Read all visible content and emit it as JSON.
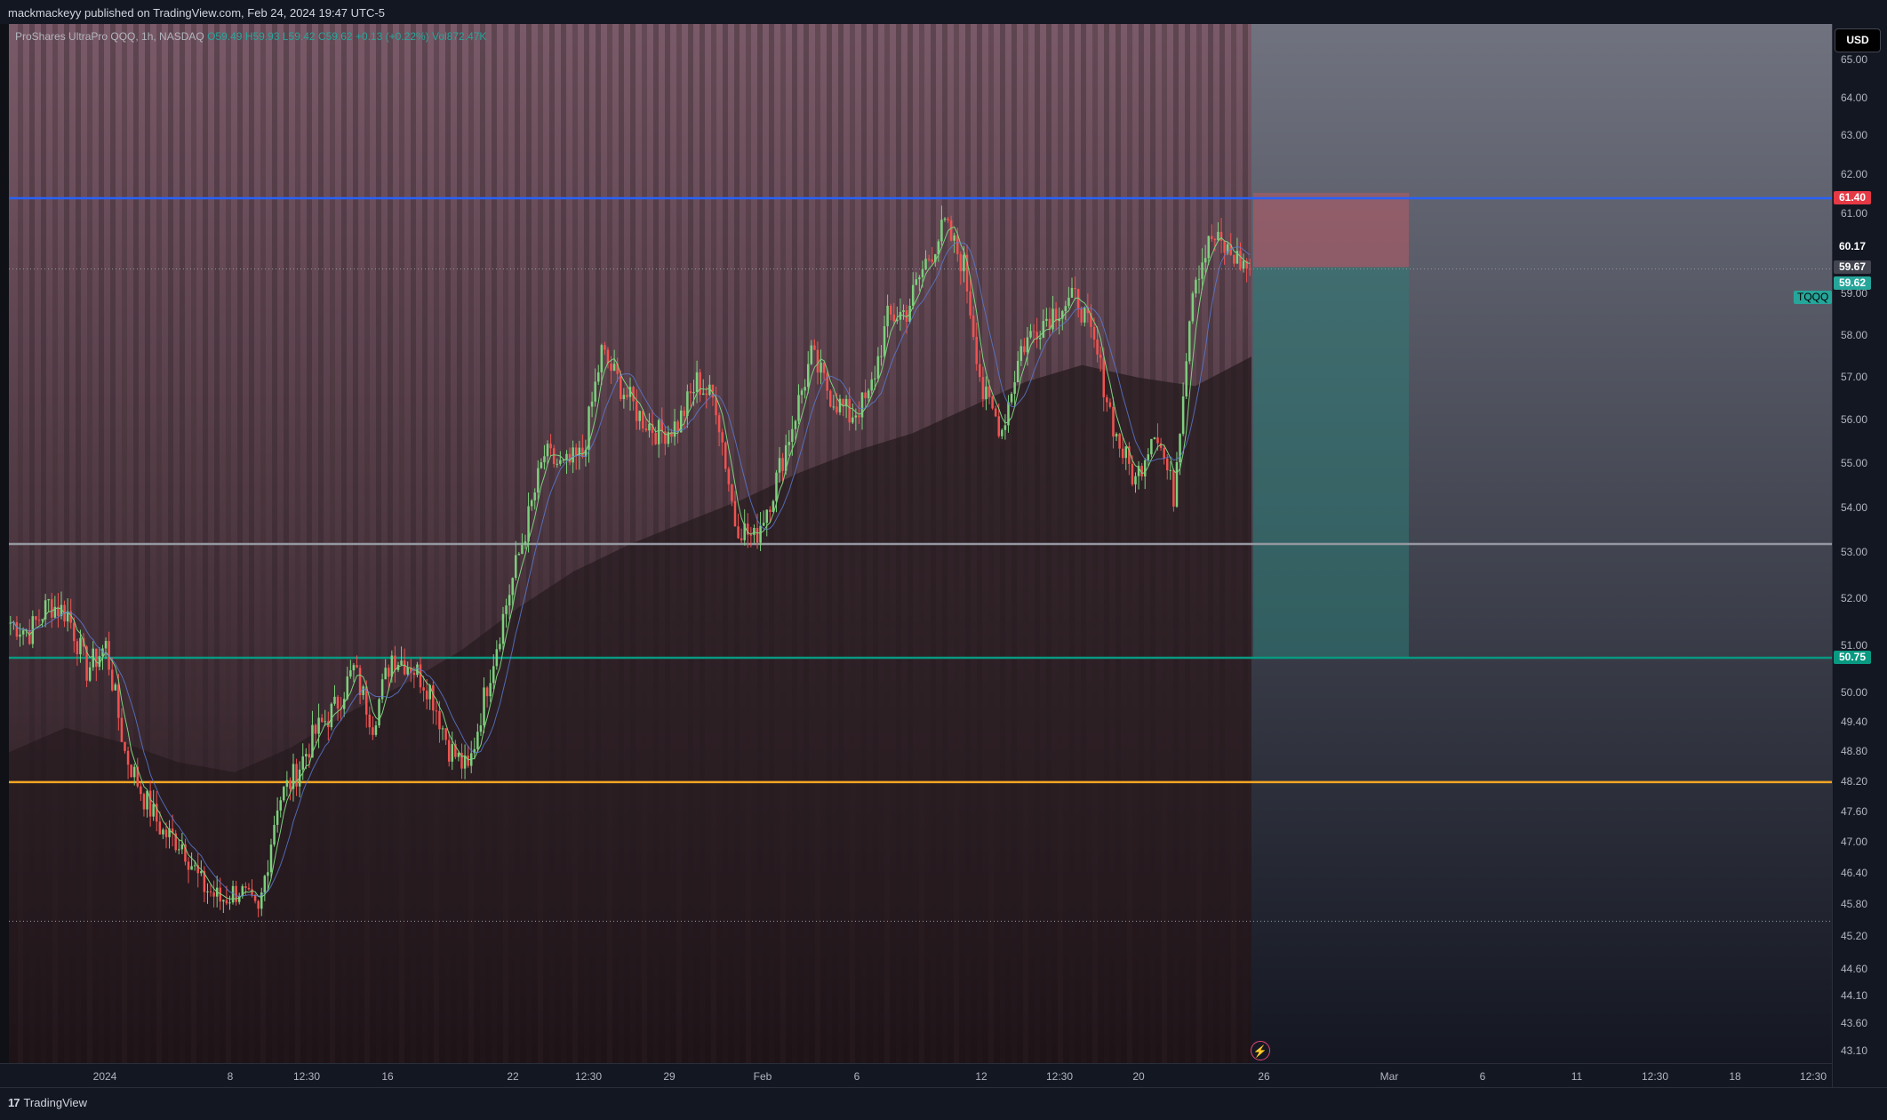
{
  "header": {
    "publisher_text": "mackmackeyy published on TradingView.com, Feb 24, 2024 19:47 UTC-5"
  },
  "legend": {
    "instrument": "ProShares UltraPro QQQ, 1h, NASDAQ",
    "open": "O59.49",
    "high": "H59.93",
    "low": "L59.42",
    "close": "C59.62",
    "change": "+0.13 (+0.22%)",
    "volume": "Vol872.47K"
  },
  "currency_button": "USD",
  "ticker_tag": "TQQQ",
  "footer": {
    "logo_text": "TradingView",
    "logo_mark": "17"
  },
  "colors": {
    "up": "#26a69a",
    "up_candle": "#7ed07e",
    "down": "#ef5350",
    "blue_line": "#2962ff",
    "teal_line": "#089981",
    "orange_line": "#f5a623",
    "gray_line": "#9598a1"
  },
  "chart_data": {
    "type": "candlestick",
    "title": "ProShares UltraPro QQQ, 1h, NASDAQ",
    "xlabel": "",
    "ylabel": "",
    "x_tick_labels": [
      "2024",
      "8",
      "12:30",
      "16",
      "22",
      "12:30",
      "29",
      "Feb",
      "6",
      "12",
      "12:30",
      "20",
      "26",
      "Mar",
      "6",
      "11",
      "12:30",
      "18",
      "12:30"
    ],
    "y_tick_labels": [
      "65.00",
      "64.00",
      "63.00",
      "62.00",
      "61.00",
      "59.00",
      "58.00",
      "57.00",
      "56.00",
      "55.00",
      "54.00",
      "53.00",
      "52.00",
      "51.00",
      "50.00",
      "49.40",
      "48.80",
      "48.20",
      "47.60",
      "47.00",
      "46.40",
      "45.80",
      "45.20",
      "44.60",
      "44.10",
      "43.60",
      "43.10"
    ],
    "y_scale": "log",
    "ylim": [
      42.9,
      66.0
    ],
    "grid": false,
    "close_path": [
      51.5,
      51.3,
      51.9,
      51.7,
      50.5,
      51.0,
      48.8,
      47.9,
      47.2,
      47.0,
      46.2,
      45.9,
      46.1,
      45.6,
      47.8,
      48.4,
      49.2,
      49.7,
      50.5,
      49.4,
      50.8,
      50.6,
      50.1,
      48.9,
      48.4,
      50.2,
      51.9,
      53.5,
      55.2,
      54.9,
      55.2,
      57.6,
      56.8,
      56.1,
      55.7,
      55.9,
      56.9,
      56.4,
      53.7,
      53.3,
      54.4,
      55.9,
      57.5,
      56.6,
      56.1,
      56.5,
      58.4,
      58.6,
      59.8,
      60.7,
      59.7,
      56.6,
      55.8,
      57.7,
      58.3,
      58.7,
      58.9,
      57.5,
      55.6,
      54.6,
      55.9,
      54.3,
      59.3,
      60.4,
      60.0,
      59.62
    ],
    "series": [
      {
        "name": "",
        "type": "moving-average",
        "values": [
          48.8,
          49.3,
          49.0,
          48.6,
          48.4,
          48.9,
          49.6,
          50.2,
          50.9,
          51.8,
          52.6,
          53.2,
          53.7,
          54.2,
          54.8,
          55.3,
          55.7,
          56.3,
          56.9,
          57.3,
          57.0,
          56.8,
          57.5
        ]
      }
    ],
    "horizontal_levels": [
      {
        "price": 61.4,
        "label": "61.40",
        "color": "blue"
      },
      {
        "price": 53.2,
        "label": "",
        "color": "gray"
      },
      {
        "price": 50.75,
        "label": "50.75",
        "color": "teal"
      },
      {
        "price": 48.2,
        "label": "",
        "color": "orange"
      }
    ],
    "price_labels": {
      "stop": "61.40",
      "level_mid": "60.17",
      "entry": "59.67",
      "last": "59.62",
      "target": "50.75"
    },
    "position": {
      "type": "short",
      "entry": 59.67,
      "stop": 61.4,
      "target": 50.75
    }
  }
}
